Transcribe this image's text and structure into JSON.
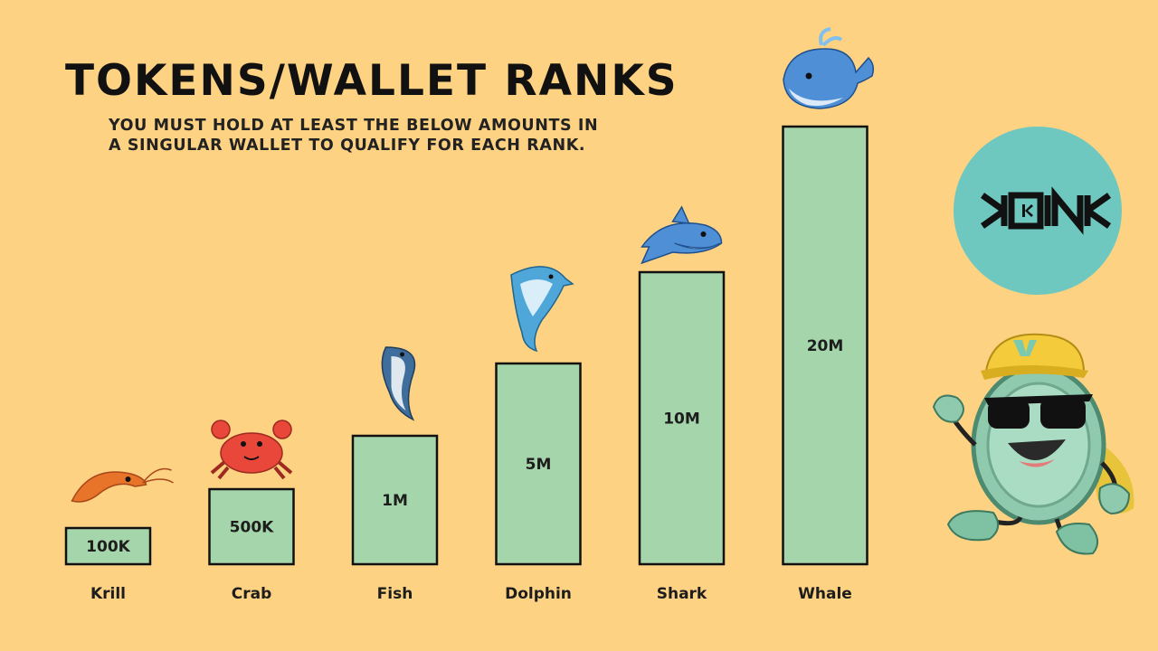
{
  "header": {
    "title": "TOKENS/WALLET RANKS",
    "subtitle": "YOU MUST HOLD AT LEAST THE BELOW AMOUNTS IN A SINGULAR WALLET TO QUALIFY FOR EACH RANK."
  },
  "logo": {
    "text": "KOIN",
    "color": "#6ec8bf"
  },
  "colors": {
    "background": "#fdd283",
    "bar": "#a5d5ab",
    "bar_border": "#111111"
  },
  "chart_data": {
    "type": "bar",
    "categories": [
      "Krill",
      "Crab",
      "Fish",
      "Dolphin",
      "Shark",
      "Whale"
    ],
    "values": [
      100000,
      500000,
      1000000,
      5000000,
      10000000,
      20000000
    ],
    "value_labels": [
      "100K",
      "500K",
      "1M",
      "5M",
      "10M",
      "20M"
    ],
    "icons": [
      "shrimp-icon",
      "crab-icon",
      "fish-icon",
      "dolphin-icon",
      "shark-icon",
      "whale-icon"
    ],
    "title": "TOKENS/WALLET RANKS",
    "xlabel": "",
    "ylabel": "",
    "grid": false,
    "legend": "none"
  }
}
